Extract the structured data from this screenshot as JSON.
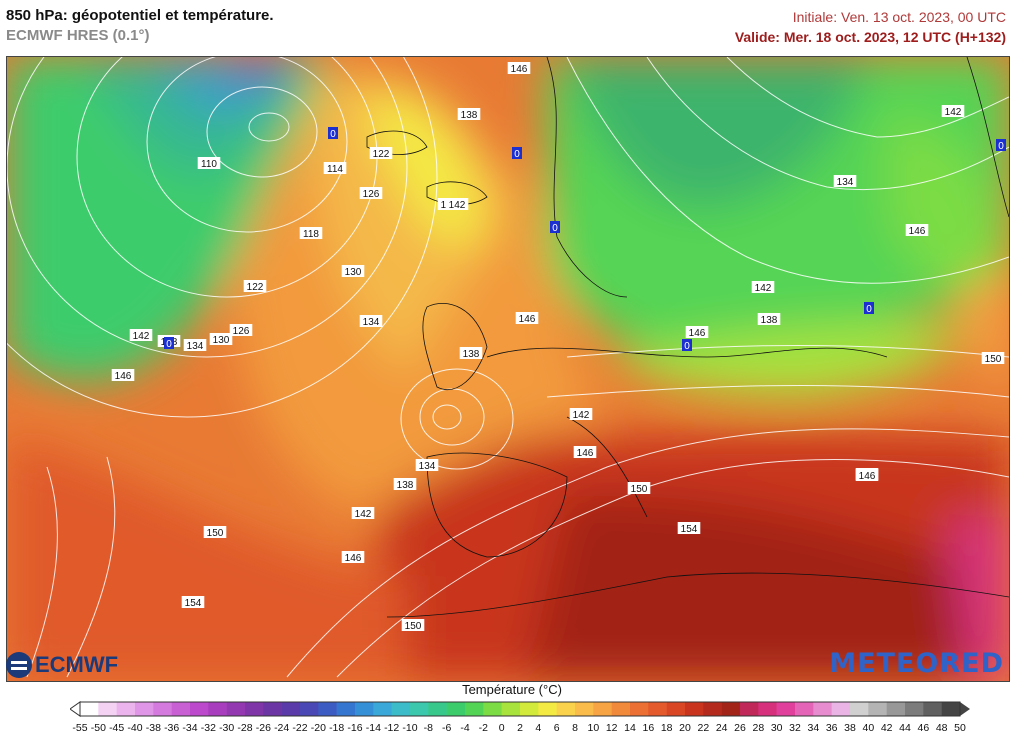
{
  "header": {
    "title": "850 hPa: géopotentiel et température.",
    "model": "ECMWF HRES (0.1°)",
    "initiale": "Initiale: Ven. 13 oct. 2023, 00 UTC",
    "valide": "Valide: Mer. 18 oct. 2023, 12 UTC (H+132)"
  },
  "logos": {
    "left": "ECMWF",
    "right": "METEORED"
  },
  "legend": {
    "title": "Température (°C)",
    "ticks": [
      "-55",
      "-50",
      "-45",
      "-40",
      "-38",
      "-36",
      "-34",
      "-32",
      "-30",
      "-28",
      "-26",
      "-24",
      "-22",
      "-20",
      "-18",
      "-16",
      "-14",
      "-12",
      "-10",
      "-8",
      "-6",
      "-4",
      "-2",
      "0",
      "2",
      "4",
      "6",
      "8",
      "10",
      "12",
      "14",
      "16",
      "18",
      "20",
      "22",
      "24",
      "26",
      "28",
      "30",
      "32",
      "34",
      "36",
      "38",
      "40",
      "42",
      "44",
      "46",
      "48",
      "50"
    ],
    "colors": [
      "#ffffff",
      "#f4d2f4",
      "#ecb4ec",
      "#e096e6",
      "#d47ade",
      "#c860d4",
      "#bc48cc",
      "#a83ebe",
      "#9438b2",
      "#7f35a8",
      "#6c35a4",
      "#5a3aa8",
      "#4a48b4",
      "#3c5cc4",
      "#3476d0",
      "#3690d8",
      "#3aa8d8",
      "#3cbcc8",
      "#3cc8ac",
      "#38c88c",
      "#3ccc6c",
      "#54d454",
      "#7cdc44",
      "#a8e23c",
      "#d2ea3c",
      "#f4ea44",
      "#fad24c",
      "#fabc4a",
      "#f6a444",
      "#f28a3c",
      "#ec7034",
      "#e45a2c",
      "#d84624",
      "#c8341e",
      "#b42a1c",
      "#a22418",
      "#c0285a",
      "#d6307c",
      "#e0409c",
      "#e464b8",
      "#e88cd0",
      "#eab4e4",
      "#d0d0d0",
      "#b4b4b4",
      "#989898",
      "#7c7c7c",
      "#606060",
      "#444444"
    ]
  },
  "map": {
    "geopotential_labels": [
      "146",
      "138",
      "110",
      "114",
      "122",
      "126",
      "142",
      "118",
      "122",
      "130",
      "134",
      "142",
      "138",
      "134",
      "130",
      "126",
      "146",
      "146",
      "138",
      "142",
      "146",
      "134",
      "138",
      "142",
      "146",
      "150",
      "154",
      "150",
      "154",
      "150",
      "150",
      "150",
      "134",
      "142",
      "146",
      "142",
      "138",
      "146",
      "142",
      "146"
    ],
    "low_pressure_markers": [
      "0",
      "0",
      "0",
      "0",
      "0",
      "0",
      "0"
    ]
  }
}
